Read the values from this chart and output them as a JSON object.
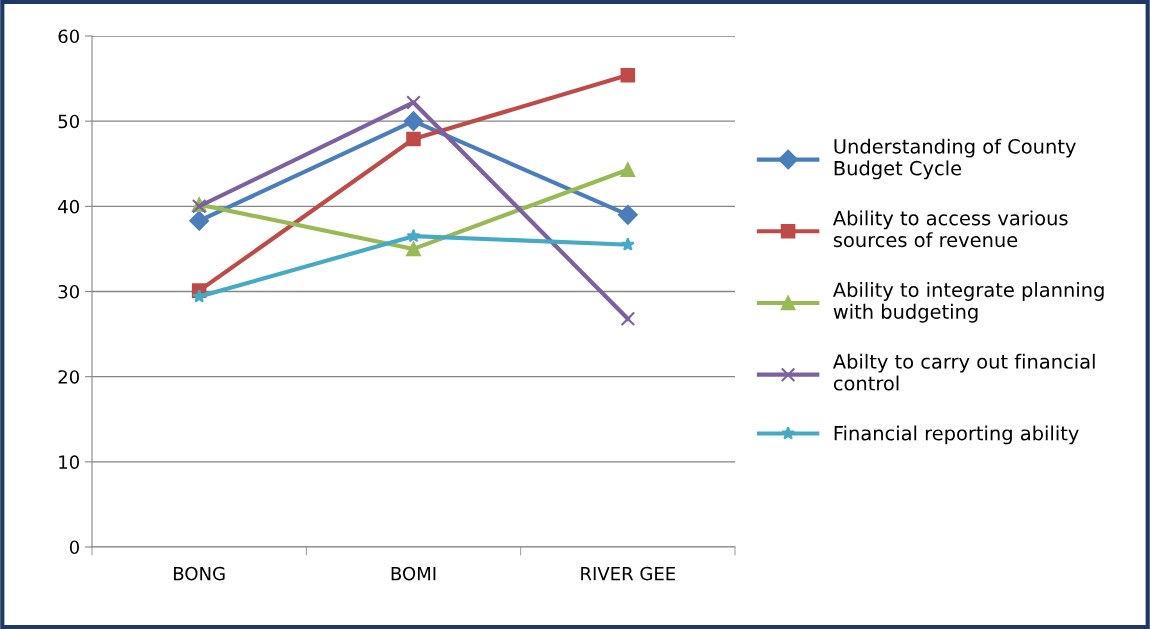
{
  "chart_data": {
    "type": "line",
    "categories": [
      "BONG",
      "BOMI",
      "RIVER GEE"
    ],
    "series": [
      {
        "name": "Understanding of County Budget Cycle",
        "color": "#4a7ebb",
        "marker": "diamond",
        "values": [
          38.3,
          50.0,
          39.0
        ]
      },
      {
        "name": "Ability to access various sources of revenue",
        "color": "#be4b48",
        "marker": "square",
        "values": [
          30.1,
          47.9,
          55.4
        ]
      },
      {
        "name": "Ability to integrate planning with budgeting",
        "color": "#98b954",
        "marker": "triangle",
        "values": [
          40.2,
          35.0,
          44.3
        ]
      },
      {
        "name": "Abilty to carry out financial control",
        "color": "#7d60a0",
        "marker": "cross",
        "values": [
          40.0,
          52.2,
          26.8
        ]
      },
      {
        "name": "Financial reporting ability",
        "color": "#46aac5",
        "marker": "star",
        "values": [
          29.4,
          36.5,
          35.5
        ]
      }
    ],
    "ylim": [
      0,
      60
    ],
    "yticks": [
      0,
      10,
      20,
      30,
      40,
      50,
      60
    ],
    "grid": "y",
    "legend": "right"
  }
}
